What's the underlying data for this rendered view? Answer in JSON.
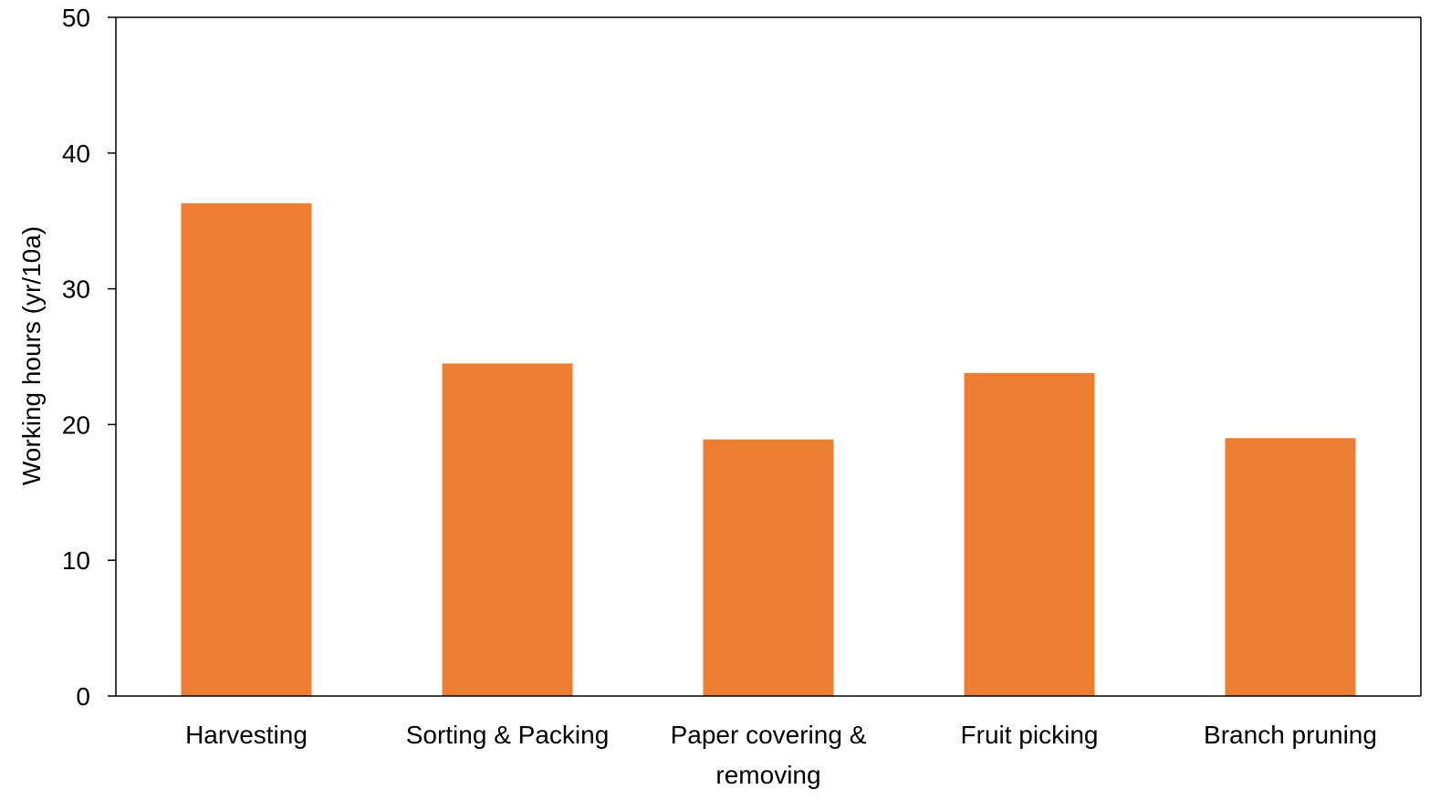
{
  "chart_data": {
    "type": "bar",
    "title": "",
    "xlabel": "",
    "ylabel": "Working hours (yr/10a)",
    "categories": [
      [
        "Harvesting"
      ],
      [
        "Sorting & Packing"
      ],
      [
        "Paper covering &",
        "removing"
      ],
      [
        "Fruit picking"
      ],
      [
        "Branch pruning"
      ]
    ],
    "values": [
      36.3,
      24.5,
      18.9,
      23.8,
      19.0
    ],
    "ylim": [
      0,
      50
    ],
    "yticks": [
      "0",
      "10",
      "20",
      "30",
      "40",
      "50"
    ],
    "grid": false,
    "legend": "none",
    "bar_color": "#ED7D31",
    "axis_color": "#000000"
  }
}
